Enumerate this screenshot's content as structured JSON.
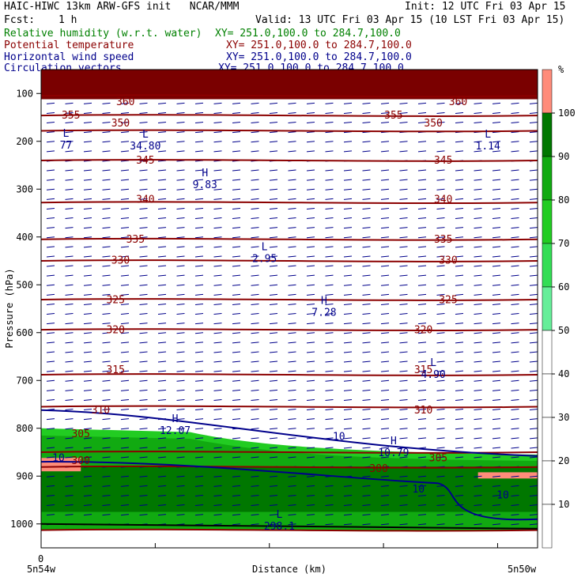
{
  "header": {
    "left1": "HAIC-HIWC 13km ARW-GFS init   NCAR/MMM",
    "right1": "Init: 12 UTC Fri 03 Apr 15",
    "fcst_label": "Fcst:",
    "fcst_value": "1 h",
    "valid": "Valid: 13 UTC Fri 03 Apr 15 (10 LST Fri 03 Apr 15)"
  },
  "fields": [
    {
      "name": "Relative humidity (w.r.t. water)",
      "xy": "XY= 251.0,100.0 to 284.7,100.0",
      "color": "#008000"
    },
    {
      "name": "Potential temperature",
      "xy": "XY= 251.0,100.0 to 284.7,100.0",
      "color": "#8b0000"
    },
    {
      "name": "Horizontal wind speed",
      "xy": "XY= 251.0,100.0 to 284.7,100.0",
      "color": "#00008b"
    },
    {
      "name": "Circulation vectors",
      "xy": "XY= 251.0,100.0 to 284.7,100.0",
      "color": "#00008b"
    }
  ],
  "axes": {
    "ylabel": "Pressure (hPa)",
    "xlabel": "Distance (km)",
    "x_zero": "0",
    "x_left": "5n54w",
    "x_right": "5n50w",
    "yticks": [
      "100",
      "200",
      "300",
      "400",
      "500",
      "600",
      "700",
      "800",
      "900",
      "1000"
    ]
  },
  "colorbar": {
    "unit": "%",
    "labels": [
      "10",
      "20",
      "30",
      "40",
      "50",
      "60",
      "70",
      "80",
      "90",
      "100"
    ],
    "colors": {
      "0-50": "#ffffff",
      "50-60": "#66ee99",
      "60-70": "#33dd55",
      "70-80": "#22cc22",
      "80-90": "#11aa11",
      "90-100": "#007700",
      "100+": "#ff8c7a"
    }
  },
  "chart_data": {
    "type": "heatmap",
    "ylim": [
      50,
      1050
    ],
    "theta_levels": [
      {
        "value": 360,
        "p": 105
      },
      {
        "value": 355,
        "p": 146
      },
      {
        "value": 350,
        "p": 178
      },
      {
        "value": 345,
        "p": 240
      },
      {
        "value": 340,
        "p": 328
      },
      {
        "value": 335,
        "p": 405
      },
      {
        "value": 330,
        "p": 450
      },
      {
        "value": 325,
        "p": 531
      },
      {
        "value": 320,
        "p": 594
      },
      {
        "value": 315,
        "p": 688
      },
      {
        "value": 310,
        "p": 755
      },
      {
        "value": 305,
        "p": 850
      },
      {
        "value": 300,
        "p": 881
      },
      {
        "value": 298.1,
        "p": 1013
      }
    ],
    "theta_labels": [
      {
        "text": "360",
        "x": 0.17,
        "p": 118
      },
      {
        "text": "360",
        "x": 0.84,
        "p": 118
      },
      {
        "text": "355",
        "x": 0.06,
        "p": 146
      },
      {
        "text": "355",
        "x": 0.71,
        "p": 146
      },
      {
        "text": "350",
        "x": 0.16,
        "p": 162
      },
      {
        "text": "350",
        "x": 0.79,
        "p": 162
      },
      {
        "text": "345",
        "x": 0.21,
        "p": 240
      },
      {
        "text": "345",
        "x": 0.81,
        "p": 240
      },
      {
        "text": "340",
        "x": 0.21,
        "p": 322
      },
      {
        "text": "340",
        "x": 0.81,
        "p": 322
      },
      {
        "text": "335",
        "x": 0.19,
        "p": 405
      },
      {
        "text": "335",
        "x": 0.81,
        "p": 405
      },
      {
        "text": "330",
        "x": 0.16,
        "p": 449
      },
      {
        "text": "330",
        "x": 0.82,
        "p": 449
      },
      {
        "text": "325",
        "x": 0.15,
        "p": 532
      },
      {
        "text": "325",
        "x": 0.82,
        "p": 532
      },
      {
        "text": "320",
        "x": 0.15,
        "p": 595
      },
      {
        "text": "320",
        "x": 0.77,
        "p": 595
      },
      {
        "text": "315",
        "x": 0.15,
        "p": 678
      },
      {
        "text": "315",
        "x": 0.77,
        "p": 678
      },
      {
        "text": "310",
        "x": 0.12,
        "p": 762
      },
      {
        "text": "310",
        "x": 0.77,
        "p": 762
      },
      {
        "text": "305",
        "x": 0.08,
        "p": 812
      },
      {
        "text": "305",
        "x": 0.8,
        "p": 862
      },
      {
        "text": "300",
        "x": 0.08,
        "p": 868
      },
      {
        "text": "300",
        "x": 0.68,
        "p": 885
      },
      {
        "text": "10",
        "x": 0.035,
        "p": 862
      },
      {
        "text": "10",
        "x": 0.6,
        "p": 818
      },
      {
        "text": "10",
        "x": 0.76,
        "p": 928
      },
      {
        "text": "10",
        "x": 0.93,
        "p": 940
      }
    ],
    "extrema": [
      {
        "type": "L",
        "value": "77",
        "x": 0.05,
        "p": 200
      },
      {
        "type": "L",
        "value": "34.80",
        "x": 0.21,
        "p": 202
      },
      {
        "type": "H",
        "value": "9.83",
        "x": 0.33,
        "p": 283
      },
      {
        "type": "L",
        "value": "2.95",
        "x": 0.45,
        "p": 438
      },
      {
        "type": "H",
        "value": "7.28",
        "x": 0.57,
        "p": 550
      },
      {
        "type": "L",
        "value": "1.14",
        "x": 0.9,
        "p": 202
      },
      {
        "type": "L",
        "value": "4.90",
        "x": 0.79,
        "p": 680
      },
      {
        "type": "H",
        "value": "12.07",
        "x": 0.27,
        "p": 797
      },
      {
        "type": "H",
        "value": "10.79",
        "x": 0.71,
        "p": 843
      },
      {
        "type": "L",
        "value": "298.1",
        "x": 0.48,
        "p": 997
      }
    ]
  }
}
